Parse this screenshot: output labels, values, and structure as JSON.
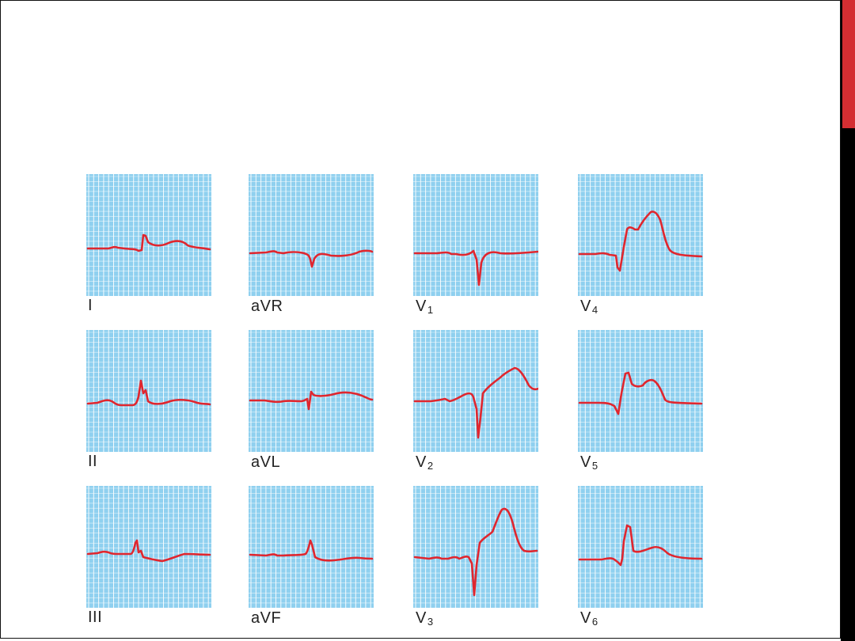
{
  "accent_colors": {
    "grid_background": "#8fd0ef",
    "grid_line": "#ffffff",
    "trace": "#e0262e",
    "slide_edge_black": "#000000",
    "slide_edge_red": "#d42e32"
  },
  "leads": [
    {
      "id": "I",
      "label": "I",
      "sub": ""
    },
    {
      "id": "aVR",
      "label": "aVR",
      "sub": ""
    },
    {
      "id": "V1",
      "label": "V",
      "sub": "1"
    },
    {
      "id": "V4",
      "label": "V",
      "sub": "4"
    },
    {
      "id": "II",
      "label": "II",
      "sub": ""
    },
    {
      "id": "aVL",
      "label": "aVL",
      "sub": ""
    },
    {
      "id": "V2",
      "label": "V",
      "sub": "2"
    },
    {
      "id": "V5",
      "label": "V",
      "sub": "5"
    },
    {
      "id": "III",
      "label": "III",
      "sub": ""
    },
    {
      "id": "aVF",
      "label": "aVF",
      "sub": ""
    },
    {
      "id": "V3",
      "label": "V",
      "sub": "3"
    },
    {
      "id": "V6",
      "label": "V",
      "sub": "6"
    }
  ]
}
